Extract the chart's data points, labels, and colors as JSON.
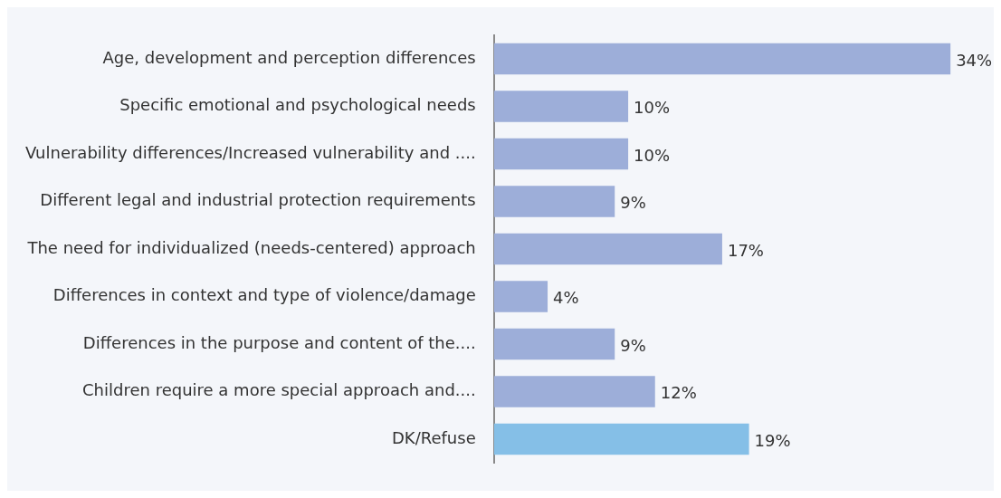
{
  "chart_data": {
    "type": "bar",
    "orientation": "horizontal",
    "grid": false,
    "legend": false,
    "categories": [
      "Age, development and perception differences",
      "Specific emotional and psychological needs",
      "Vulnerability differences/Increased vulnerability and ....",
      "Different legal and industrial protection requirements",
      "The need for individualized (needs-centered) approach",
      "Differences in context and type of violence/damage",
      "Differences in the purpose and content of the....",
      "Children require a more special approach and....",
      "DK/Refuse"
    ],
    "values": [
      34,
      10,
      10,
      9,
      17,
      4,
      9,
      12,
      19
    ],
    "value_labels": [
      "34%",
      "10%",
      "10%",
      "9%",
      "17%",
      "4%",
      "9%",
      "12%",
      "19%"
    ],
    "colors": [
      "#9daed9",
      "#9daed9",
      "#9daed9",
      "#9daed9",
      "#9daed9",
      "#9daed9",
      "#9daed9",
      "#9daed9",
      "#85bfe7"
    ]
  }
}
